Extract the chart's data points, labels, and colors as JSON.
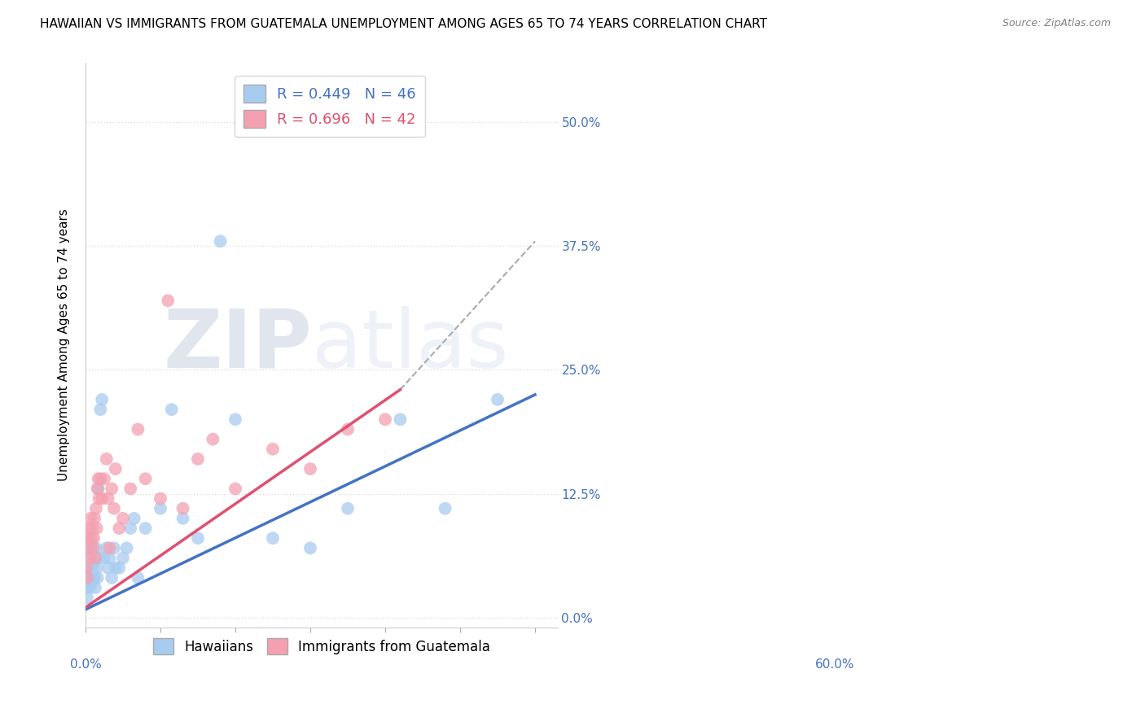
{
  "title": "HAWAIIAN VS IMMIGRANTS FROM GUATEMALA UNEMPLOYMENT AMONG AGES 65 TO 74 YEARS CORRELATION CHART",
  "source": "Source: ZipAtlas.com",
  "ylabel": "Unemployment Among Ages 65 to 74 years",
  "ytick_labels": [
    "0.0%",
    "12.5%",
    "25.0%",
    "37.5%",
    "50.0%"
  ],
  "ytick_values": [
    0.0,
    0.125,
    0.25,
    0.375,
    0.5
  ],
  "xlim": [
    0.0,
    0.63
  ],
  "ylim": [
    -0.01,
    0.56
  ],
  "hawaiians": {
    "color": "#A8CCF0",
    "R": 0.449,
    "N": 46,
    "x": [
      0.001,
      0.002,
      0.003,
      0.004,
      0.005,
      0.006,
      0.007,
      0.008,
      0.009,
      0.01,
      0.011,
      0.012,
      0.013,
      0.014,
      0.015,
      0.016,
      0.017,
      0.018,
      0.02,
      0.022,
      0.025,
      0.028,
      0.03,
      0.032,
      0.035,
      0.038,
      0.04,
      0.045,
      0.05,
      0.055,
      0.06,
      0.065,
      0.07,
      0.08,
      0.1,
      0.115,
      0.13,
      0.15,
      0.18,
      0.2,
      0.25,
      0.3,
      0.35,
      0.42,
      0.48,
      0.55
    ],
    "y": [
      0.03,
      0.02,
      0.05,
      0.04,
      0.06,
      0.03,
      0.07,
      0.035,
      0.05,
      0.04,
      0.055,
      0.04,
      0.03,
      0.07,
      0.05,
      0.04,
      0.13,
      0.06,
      0.21,
      0.22,
      0.06,
      0.07,
      0.05,
      0.06,
      0.04,
      0.07,
      0.05,
      0.05,
      0.06,
      0.07,
      0.09,
      0.1,
      0.04,
      0.09,
      0.11,
      0.21,
      0.1,
      0.08,
      0.38,
      0.2,
      0.08,
      0.07,
      0.11,
      0.2,
      0.11,
      0.22
    ]
  },
  "guatemalans": {
    "color": "#F4A0B0",
    "R": 0.696,
    "N": 42,
    "x": [
      0.001,
      0.002,
      0.003,
      0.004,
      0.005,
      0.006,
      0.007,
      0.008,
      0.009,
      0.01,
      0.011,
      0.012,
      0.013,
      0.014,
      0.015,
      0.016,
      0.017,
      0.018,
      0.02,
      0.022,
      0.025,
      0.028,
      0.03,
      0.032,
      0.035,
      0.038,
      0.04,
      0.045,
      0.05,
      0.06,
      0.07,
      0.08,
      0.1,
      0.11,
      0.13,
      0.15,
      0.17,
      0.2,
      0.25,
      0.3,
      0.35,
      0.4
    ],
    "y": [
      0.05,
      0.04,
      0.08,
      0.07,
      0.09,
      0.06,
      0.1,
      0.08,
      0.09,
      0.07,
      0.08,
      0.1,
      0.06,
      0.11,
      0.09,
      0.13,
      0.14,
      0.12,
      0.14,
      0.12,
      0.14,
      0.16,
      0.12,
      0.07,
      0.13,
      0.11,
      0.15,
      0.09,
      0.1,
      0.13,
      0.19,
      0.14,
      0.12,
      0.32,
      0.11,
      0.16,
      0.18,
      0.13,
      0.17,
      0.15,
      0.19,
      0.2
    ]
  },
  "hawaiians_trendline": {
    "color": "#4472C4",
    "x_start": 0.0,
    "x_end": 0.6,
    "y_start": 0.008,
    "y_end": 0.225
  },
  "guatemalans_trendline": {
    "color": "#E05070",
    "x_start": 0.0,
    "x_end": 0.42,
    "y_start": 0.01,
    "y_end": 0.23
  },
  "background_color": "#FFFFFF",
  "grid_color": "#DDDDDD",
  "title_fontsize": 11,
  "axis_label_fontsize": 11,
  "tick_fontsize": 11,
  "legend_fontsize": 13
}
